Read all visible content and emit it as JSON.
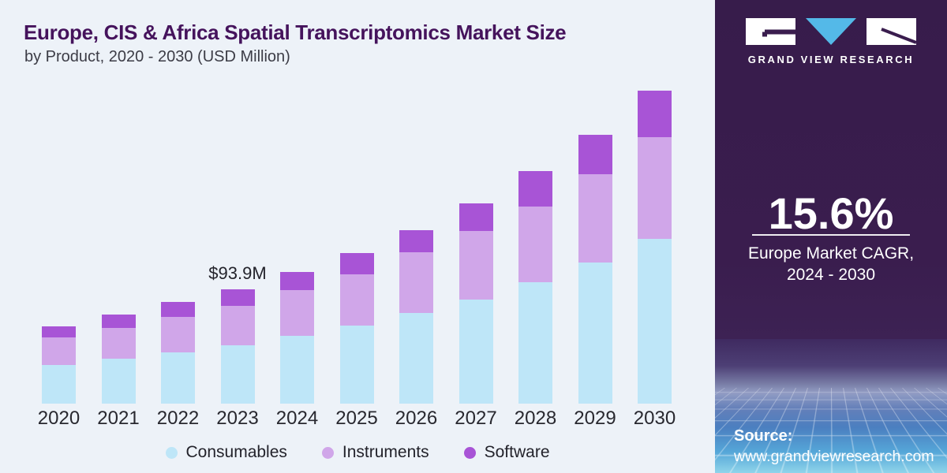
{
  "header": {
    "title": "Europe, CIS & Africa Spatial Transcriptomics Market Size",
    "subtitle": "by Product, 2020 - 2030 (USD Million)"
  },
  "brand": {
    "name": "GRAND VIEW RESEARCH",
    "logo_triangle_color": "#54b9e8",
    "logo_box_color": "#ffffff",
    "logo_stroke_color": "#3a1d4e"
  },
  "sidebar": {
    "background_color": "#3a1d4e",
    "cagr_value": "15.6%",
    "cagr_label_line1": "Europe Market CAGR,",
    "cagr_label_line2": "2024 - 2030",
    "source_label": "Source:",
    "source_url": "www.grandviewresearch.com"
  },
  "chart_data": {
    "type": "bar",
    "stacked": true,
    "title": "Europe, CIS & Africa Spatial Transcriptomics Market Size",
    "subtitle": "by Product, 2020 - 2030 (USD Million)",
    "xlabel": "",
    "ylabel": "USD Million",
    "ylim": [
      0,
      260
    ],
    "axes_hidden": true,
    "grid": false,
    "legend_position": "bottom",
    "background_color": "#edf2f8",
    "categories": [
      "2020",
      "2021",
      "2022",
      "2023",
      "2024",
      "2025",
      "2026",
      "2027",
      "2028",
      "2029",
      "2030"
    ],
    "series": [
      {
        "name": "Consumables",
        "color": "#bee6f8",
        "values": [
          32.1,
          37.3,
          42.5,
          48.4,
          55.9,
          64.2,
          75.0,
          85.8,
          99.9,
          116.2,
          135.7
        ]
      },
      {
        "name": "Instruments",
        "color": "#d0a6e9",
        "values": [
          22.8,
          25.2,
          28.9,
          31.9,
          37.5,
          42.7,
          49.9,
          56.8,
          62.4,
          72.8,
          84.1
        ]
      },
      {
        "name": "Software",
        "color": "#a854d6",
        "values": [
          8.7,
          10.9,
          12.4,
          13.7,
          15.2,
          17.1,
          18.2,
          22.8,
          29.3,
          33.0,
          38.4
        ]
      }
    ],
    "totals": [
      63.6,
      73.4,
      83.8,
      94.0,
      108.6,
      124.0,
      143.1,
      165.4,
      191.6,
      222.0,
      258.2
    ],
    "annotation": {
      "category": "2023",
      "label": "$93.9M"
    }
  }
}
